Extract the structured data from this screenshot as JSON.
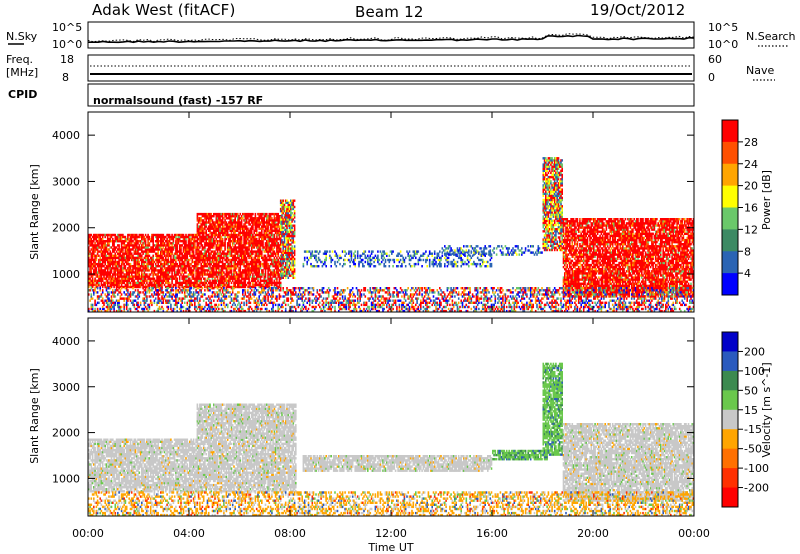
{
  "header": {
    "station": "Adak West (fitACF)",
    "beam": "Beam 12",
    "date": "19/Oct/2012"
  },
  "top_panels": {
    "noise": {
      "left_label": "N.Sky",
      "right_label": "N.Search",
      "left_ticks": [
        "10^5",
        "10^0"
      ],
      "right_ticks": [
        "10^5",
        "10^0"
      ]
    },
    "freq": {
      "left_label_1": "Freq.",
      "left_label_2": "[MHz]",
      "right_label": "Nave",
      "left_ticks": [
        "18",
        "8"
      ],
      "right_ticks": [
        "60",
        "0"
      ]
    },
    "cpid": {
      "label": "CPID",
      "text": "normalsound (fast) -157 RF"
    }
  },
  "colors": {
    "power": [
      "#0000ff",
      "#2a64b4",
      "#3c8a64",
      "#6ac86a",
      "#ffff00",
      "#ffa500",
      "#ff5000",
      "#ff0000"
    ],
    "velocity": [
      "#0000c8",
      "#2a5abe",
      "#3c8a50",
      "#6ac84c",
      "#c8c8c8",
      "#ffa500",
      "#ff7000",
      "#ff3000",
      "#ff0000"
    ],
    "ground_scatter": "#c8c8c8"
  },
  "chart_data": [
    {
      "type": "heatmap",
      "name": "power",
      "ylabel": "Slant Range [km]",
      "y_ticks": [
        "1000",
        "2000",
        "3000",
        "4000"
      ],
      "ylim": [
        180,
        4500
      ],
      "xlim_hours": [
        0,
        24
      ],
      "colorbar_label": "Power [dB]",
      "colorbar_ticks": [
        "4",
        "8",
        "12",
        "16",
        "20",
        "24",
        "28"
      ],
      "scatter_regions": [
        {
          "t0": 0.0,
          "t1": 4.3,
          "r0": 700,
          "r1": 1850,
          "level": "high",
          "kind": "power"
        },
        {
          "t0": 4.3,
          "t1": 7.6,
          "r0": 700,
          "r1": 2300,
          "level": "high",
          "kind": "power"
        },
        {
          "t0": 7.6,
          "t1": 8.2,
          "r0": 900,
          "r1": 2600,
          "level": "mid",
          "kind": "power"
        },
        {
          "t0": 8.5,
          "t1": 16.0,
          "r0": 1150,
          "r1": 1500,
          "level": "low",
          "kind": "power"
        },
        {
          "t0": 14.0,
          "t1": 18.0,
          "r0": 1400,
          "r1": 1600,
          "level": "low",
          "kind": "power"
        },
        {
          "t0": 18.0,
          "t1": 18.8,
          "r0": 1500,
          "r1": 3500,
          "level": "mid",
          "kind": "power"
        },
        {
          "t0": 18.8,
          "t1": 24.0,
          "r0": 500,
          "r1": 2200,
          "level": "high",
          "kind": "power"
        },
        {
          "t0": 0.0,
          "t1": 24.0,
          "r0": 180,
          "r1": 700,
          "level": "mixed",
          "kind": "power"
        }
      ]
    },
    {
      "type": "heatmap",
      "name": "velocity",
      "ylabel": "Slant Range [km]",
      "y_ticks": [
        "1000",
        "2000",
        "3000",
        "4000"
      ],
      "ylim": [
        180,
        4500
      ],
      "xlim_hours": [
        0,
        24
      ],
      "colorbar_label": "Velocity [m s^-1]",
      "colorbar_ticks": [
        "200",
        "100",
        "50",
        "15",
        "-15",
        "-50",
        "-100",
        "-200"
      ],
      "scatter_regions": [
        {
          "t0": 0.0,
          "t1": 4.3,
          "r0": 700,
          "r1": 1850,
          "level": "ground",
          "kind": "velocity"
        },
        {
          "t0": 4.3,
          "t1": 8.2,
          "r0": 700,
          "r1": 2600,
          "level": "ground",
          "kind": "velocity"
        },
        {
          "t0": 8.5,
          "t1": 16.0,
          "r0": 1150,
          "r1": 1500,
          "level": "ground",
          "kind": "velocity"
        },
        {
          "t0": 16.0,
          "t1": 18.2,
          "r0": 1400,
          "r1": 1600,
          "level": "green",
          "kind": "velocity"
        },
        {
          "t0": 18.0,
          "t1": 18.8,
          "r0": 1500,
          "r1": 3500,
          "level": "green",
          "kind": "velocity"
        },
        {
          "t0": 18.8,
          "t1": 24.0,
          "r0": 500,
          "r1": 2200,
          "level": "ground",
          "kind": "velocity"
        },
        {
          "t0": 0.0,
          "t1": 24.0,
          "r0": 180,
          "r1": 700,
          "level": "orange",
          "kind": "velocity"
        }
      ]
    }
  ],
  "x_axis": {
    "label": "Time UT",
    "ticks": [
      "00:00",
      "04:00",
      "08:00",
      "12:00",
      "16:00",
      "20:00",
      "00:00"
    ]
  }
}
